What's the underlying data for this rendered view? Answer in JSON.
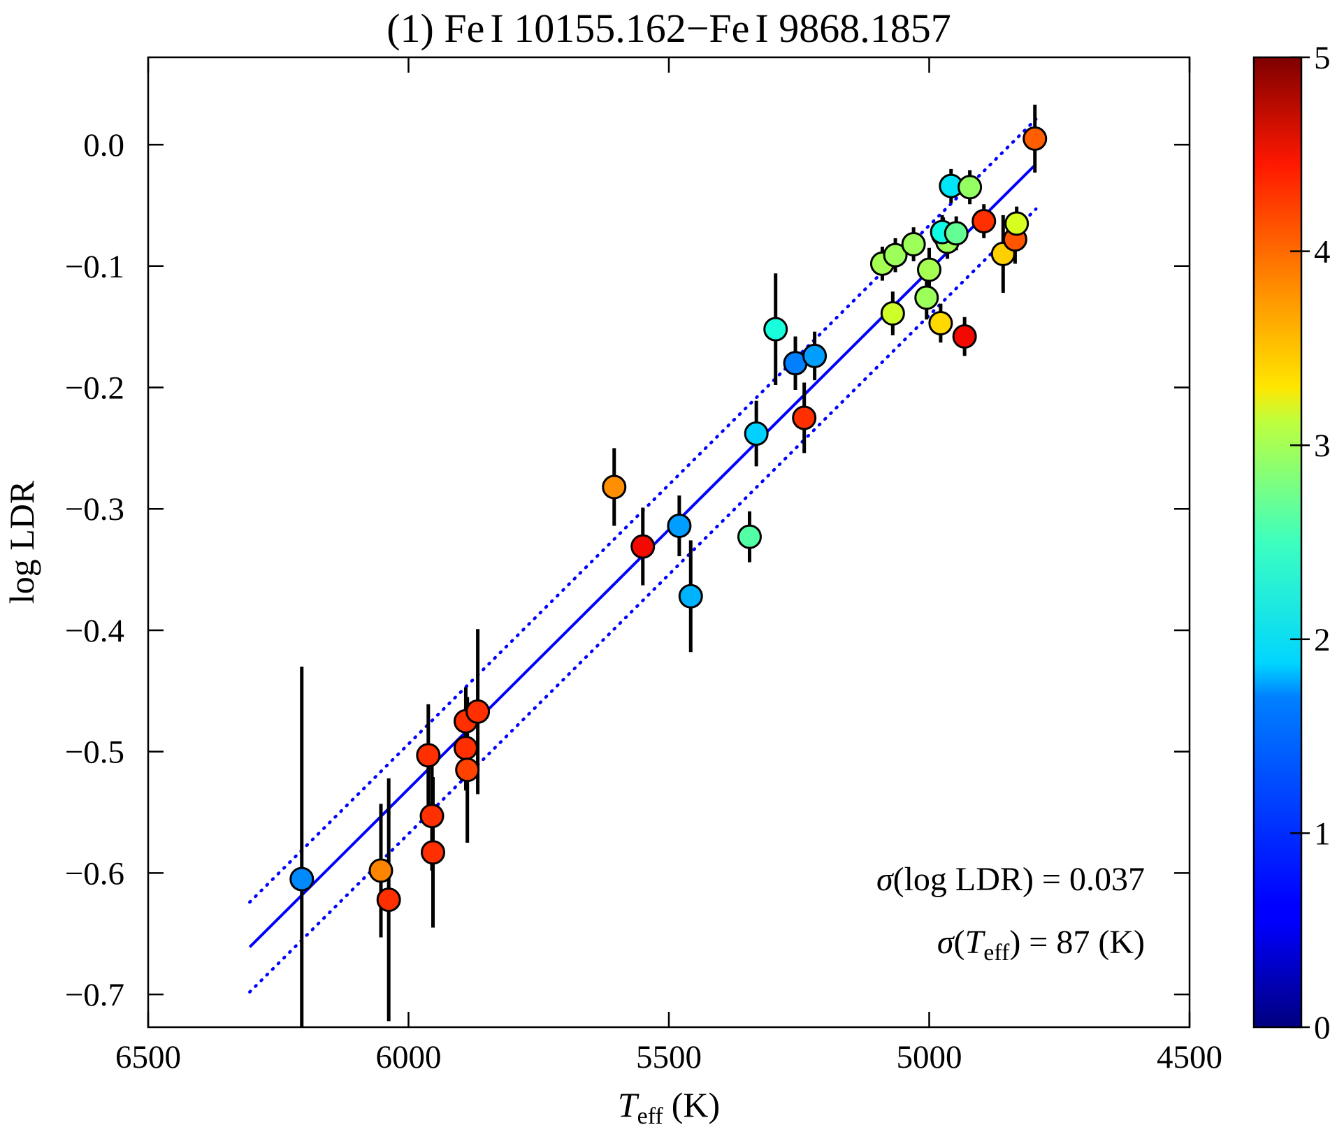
{
  "chart_data": {
    "type": "scatter",
    "title": "(1) Fe I 10155.162−Fe I 9868.1857",
    "title_parts": {
      "prefix": "(1) ",
      "species": "Fe",
      "ion": "I",
      "line1": " 10155.162",
      "sep": "−",
      "line2": " 9868.1857"
    },
    "xlabel": "T_eff (K)",
    "xlabel_parts": {
      "symbol": "T",
      "subscript": "eff",
      "unit": "(K)"
    },
    "ylabel": "log LDR",
    "xlim": [
      6500,
      4500
    ],
    "ylim": [
      -0.727,
      0.072
    ],
    "xticks": [
      6500,
      6000,
      5500,
      5000,
      4500
    ],
    "xtick_labels": [
      "6500",
      "6000",
      "5500",
      "5000",
      "4500"
    ],
    "yticks": [
      0.0,
      -0.1,
      -0.2,
      -0.3,
      -0.4,
      -0.5,
      -0.6,
      -0.7
    ],
    "ytick_labels": [
      "0.0",
      "−0.1",
      "−0.2",
      "−0.3",
      "−0.4",
      "−0.5",
      "−0.6",
      "−0.7"
    ],
    "colorbar": {
      "range": [
        0,
        5
      ],
      "ticks": [
        0,
        1,
        2,
        3,
        4,
        5
      ],
      "tick_labels": [
        "0",
        "1",
        "2",
        "3",
        "4",
        "5"
      ],
      "colormap": "jet"
    },
    "fit_line": {
      "x": [
        6305,
        4795
      ],
      "y": [
        -0.661,
        -0.016
      ],
      "color": "#0000ff"
    },
    "fit_bounds": [
      {
        "x": [
          6305,
          4795
        ],
        "y": [
          -0.624,
          0.021
        ],
        "color": "#0000ff",
        "style": "dotted"
      },
      {
        "x": [
          6305,
          4795
        ],
        "y": [
          -0.698,
          -0.053
        ],
        "color": "#0000ff",
        "style": "dotted"
      }
    ],
    "points": [
      {
        "teff": 6205,
        "logldr": -0.605,
        "err": 0.175,
        "c": 1.3
      },
      {
        "teff": 6053,
        "logldr": -0.598,
        "err": 0.055,
        "c": 3.85
      },
      {
        "teff": 6038,
        "logldr": -0.622,
        "err": 0.1,
        "c": 4.3
      },
      {
        "teff": 5962,
        "logldr": -0.503,
        "err": 0.042,
        "c": 4.3
      },
      {
        "teff": 5955,
        "logldr": -0.553,
        "err": 0.045,
        "c": 4.3
      },
      {
        "teff": 5953,
        "logldr": -0.583,
        "err": 0.062,
        "c": 4.3
      },
      {
        "teff": 5890,
        "logldr": -0.475,
        "err": 0.028,
        "c": 4.3
      },
      {
        "teff": 5890,
        "logldr": -0.497,
        "err": 0.035,
        "c": 4.3
      },
      {
        "teff": 5887,
        "logldr": -0.515,
        "err": 0.06,
        "c": 4.2
      },
      {
        "teff": 5867,
        "logldr": -0.467,
        "err": 0.068,
        "c": 4.3
      },
      {
        "teff": 5605,
        "logldr": -0.282,
        "err": 0.032,
        "c": 3.8
      },
      {
        "teff": 5550,
        "logldr": -0.331,
        "err": 0.032,
        "c": 4.5
      },
      {
        "teff": 5480,
        "logldr": -0.314,
        "err": 0.025,
        "c": 1.4
      },
      {
        "teff": 5458,
        "logldr": -0.372,
        "err": 0.046,
        "c": 1.5
      },
      {
        "teff": 5345,
        "logldr": -0.323,
        "err": 0.021,
        "c": 2.25
      },
      {
        "teff": 5332,
        "logldr": -0.238,
        "err": 0.027,
        "c": 1.65
      },
      {
        "teff": 5295,
        "logldr": -0.152,
        "err": 0.046,
        "c": 1.9
      },
      {
        "teff": 5257,
        "logldr": -0.18,
        "err": 0.022,
        "c": 1.25
      },
      {
        "teff": 5240,
        "logldr": -0.225,
        "err": 0.029,
        "c": 4.3
      },
      {
        "teff": 5220,
        "logldr": -0.174,
        "err": 0.02,
        "c": 1.4
      },
      {
        "teff": 5090,
        "logldr": -0.098,
        "err": 0.014,
        "c": 2.75
      },
      {
        "teff": 5070,
        "logldr": -0.139,
        "err": 0.018,
        "c": 3.0
      },
      {
        "teff": 5065,
        "logldr": -0.091,
        "err": 0.014,
        "c": 2.7
      },
      {
        "teff": 5030,
        "logldr": -0.082,
        "err": 0.014,
        "c": 2.7
      },
      {
        "teff": 5005,
        "logldr": -0.126,
        "err": 0.018,
        "c": 2.7
      },
      {
        "teff": 5000,
        "logldr": -0.103,
        "err": 0.018,
        "c": 2.75
      },
      {
        "teff": 4978,
        "logldr": -0.147,
        "err": 0.016,
        "c": 3.4
      },
      {
        "teff": 4973,
        "logldr": -0.074,
        "err": 0.014,
        "c": 2.75
      },
      {
        "teff": 4965,
        "logldr": -0.08,
        "err": 0.014,
        "c": 2.7
      },
      {
        "teff": 4975,
        "logldr": -0.072,
        "err": 0.014,
        "c": 1.85
      },
      {
        "teff": 4958,
        "logldr": -0.034,
        "err": 0.014,
        "c": 1.75
      },
      {
        "teff": 4948,
        "logldr": -0.073,
        "err": 0.014,
        "c": 2.35
      },
      {
        "teff": 4932,
        "logldr": -0.158,
        "err": 0.016,
        "c": 4.5
      },
      {
        "teff": 4922,
        "logldr": -0.035,
        "err": 0.014,
        "c": 2.65
      },
      {
        "teff": 4895,
        "logldr": -0.063,
        "err": 0.014,
        "c": 4.3
      },
      {
        "teff": 4858,
        "logldr": -0.09,
        "err": 0.032,
        "c": 3.45
      },
      {
        "teff": 4835,
        "logldr": -0.078,
        "err": 0.02,
        "c": 4.1
      },
      {
        "teff": 4832,
        "logldr": -0.065,
        "err": 0.014,
        "c": 3.05
      },
      {
        "teff": 4797,
        "logldr": 0.005,
        "err": 0.028,
        "c": 4.05
      }
    ],
    "annotations": {
      "sigma_ldr": {
        "symbol": "σ",
        "open": "(",
        "text": "log LDR",
        "close": ")",
        "eq": " = 0.037"
      },
      "sigma_teff": {
        "symbol": "σ",
        "open": "(",
        "var": "T",
        "sub": "eff",
        "close": ")",
        "eq": " = 87 (K)"
      }
    }
  }
}
